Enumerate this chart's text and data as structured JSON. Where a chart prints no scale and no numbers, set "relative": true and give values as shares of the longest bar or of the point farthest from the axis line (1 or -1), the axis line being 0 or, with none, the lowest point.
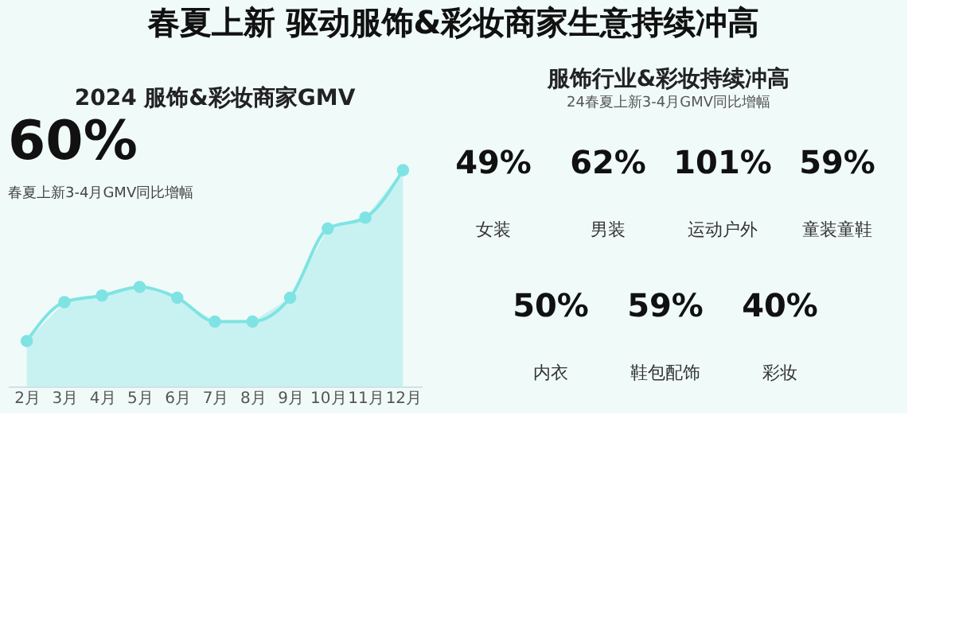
{
  "chart_data": [
    {
      "type": "area",
      "title": "2024 服饰&彩妆商家GMV",
      "relative": true,
      "marker": "circle",
      "grid": false,
      "annotations": [
        "春夏上新 驱动服饰&彩妆商家生意持续冲高",
        "60%",
        "春夏上新3-4月GMV同比增幅"
      ],
      "categories": [
        "2月",
        "3月",
        "4月",
        "5月",
        "6月",
        "7月",
        "8月",
        "9月",
        "10月",
        "11月",
        "12月"
      ],
      "series": [
        {
          "color": "#7fe3e3",
          "values": [
            0.21,
            0.39,
            0.42,
            0.46,
            0.41,
            0.3,
            0.3,
            0.41,
            0.73,
            0.78,
            1.0
          ]
        }
      ]
    },
    {
      "type": "other",
      "title": "服饰行业&彩妆持续冲高",
      "subtitle": "24春夏上新3-4月GMV同比增幅",
      "categories": [
        "女装",
        "男装",
        "运动户外",
        "童装童鞋",
        "内衣",
        "鞋包配饰",
        "彩妆"
      ],
      "value_labels": [
        "49%",
        "62%",
        "101%",
        "59%",
        "50%",
        "59%",
        "40%"
      ]
    }
  ]
}
